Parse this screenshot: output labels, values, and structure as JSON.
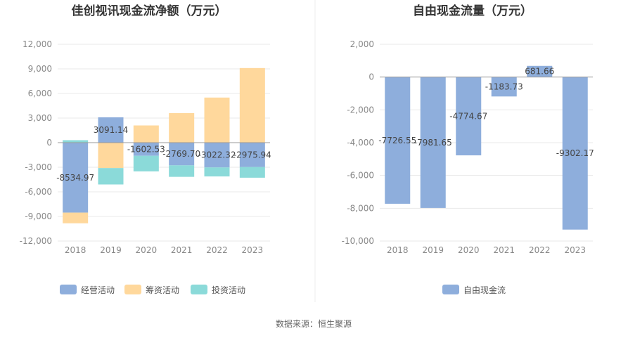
{
  "source_text": "数据来源：恒生聚源",
  "chart_data": [
    {
      "type": "bar",
      "stacked": true,
      "title": "佳创视讯现金流净额（万元）",
      "categories": [
        "2018",
        "2019",
        "2020",
        "2021",
        "2022",
        "2023"
      ],
      "ylim": [
        -12000,
        12000
      ],
      "yticks": [
        -12000,
        -9000,
        -6000,
        -3000,
        0,
        3000,
        6000,
        9000,
        12000
      ],
      "ytick_labels": [
        "-12,000",
        "-9,000",
        "-6,000",
        "-3,000",
        "0",
        "3,000",
        "6,000",
        "9,000",
        "12,000"
      ],
      "grid": true,
      "legend_position": "bottom",
      "series": [
        {
          "name": "经营活动",
          "color": "#8eaedc",
          "values": [
            -8534.97,
            3091.14,
            -1602.53,
            -2769.7,
            -3022.32,
            -2975.94
          ]
        },
        {
          "name": "筹资活动",
          "color": "#ffd89c",
          "values": [
            -1300,
            -3100,
            2100,
            3600,
            5500,
            9100
          ]
        },
        {
          "name": "投资活动",
          "color": "#8bdad9",
          "values": [
            300,
            -2000,
            -1900,
            -1400,
            -1100,
            -1300
          ]
        }
      ],
      "data_labels": [
        "-8534.97",
        "3091.14",
        "-1602.53",
        "-2769.70",
        "-3022.32",
        "-2975.94"
      ]
    },
    {
      "type": "bar",
      "title": "自由现金流量（万元）",
      "categories": [
        "2018",
        "2019",
        "2020",
        "2021",
        "2022",
        "2023"
      ],
      "ylim": [
        -10000,
        2000
      ],
      "yticks": [
        -10000,
        -8000,
        -6000,
        -4000,
        -2000,
        0,
        2000
      ],
      "ytick_labels": [
        "-10,000",
        "-8,000",
        "-6,000",
        "-4,000",
        "-2,000",
        "0",
        "2,000"
      ],
      "grid": true,
      "legend_position": "bottom",
      "series": [
        {
          "name": "自由现金流",
          "color": "#8eaedc",
          "values": [
            -7726.55,
            -7981.65,
            -4774.67,
            -1183.73,
            681.66,
            -9302.17
          ]
        }
      ],
      "data_labels": [
        "-7726.55",
        "-7981.65",
        "-4774.67",
        "-1183.73",
        "681.66",
        "-9302.17"
      ]
    }
  ]
}
